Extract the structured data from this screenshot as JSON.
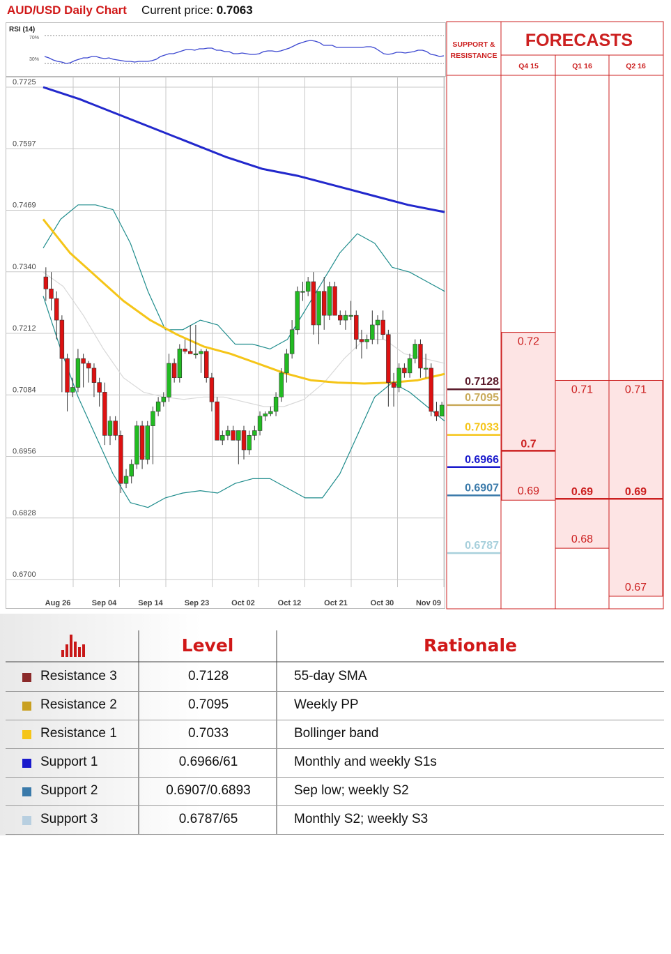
{
  "header": {
    "title": "AUD/USD Daily Chart",
    "price_label": "Current price: ",
    "price_value": "0.7063"
  },
  "rsi": {
    "label": "RSI (14)",
    "upper_label": "70%",
    "lower_label": "30%",
    "upper": 70,
    "lower": 30,
    "values": [
      40,
      38,
      35,
      33,
      32,
      30,
      31,
      34,
      36,
      38,
      38,
      40,
      40,
      38,
      37,
      38,
      36,
      35,
      34,
      33,
      33,
      32,
      33,
      33,
      33,
      34,
      36,
      40,
      42,
      44,
      44,
      46,
      48,
      50,
      50,
      49,
      51,
      51,
      52,
      52,
      49,
      49,
      47,
      47,
      44,
      44,
      45,
      44,
      43,
      43,
      44,
      47,
      48,
      48,
      47,
      48,
      50,
      52,
      55,
      58,
      60,
      62,
      63,
      62,
      60,
      56,
      56,
      56,
      53,
      53,
      53,
      53,
      53,
      53,
      53,
      54,
      54,
      52,
      48,
      44,
      43,
      44,
      46,
      46,
      45,
      46,
      47,
      49,
      49,
      47,
      43,
      42,
      40,
      41
    ]
  },
  "chart_data": {
    "type": "candlestick",
    "x_tick_labels": [
      "Aug 26",
      "Sep 04",
      "Sep 14",
      "Sep 23",
      "Oct 02",
      "Oct 12",
      "Oct 21",
      "Oct 30",
      "Nov 09"
    ],
    "y_tick_labels": [
      "0.7725",
      "0.7597",
      "0.7469",
      "0.7340",
      "0.7212",
      "0.7084",
      "0.6956",
      "0.6828",
      "0.6700"
    ],
    "ylim": [
      0.67,
      0.7725
    ],
    "grid": true,
    "candles": [
      [
        0.733,
        0.735,
        0.728,
        0.7305
      ],
      [
        0.7305,
        0.734,
        0.726,
        0.7285
      ],
      [
        0.7285,
        0.73,
        0.72,
        0.724
      ],
      [
        0.724,
        0.725,
        0.709,
        0.716
      ],
      [
        0.716,
        0.717,
        0.705,
        0.709
      ],
      [
        0.709,
        0.712,
        0.708,
        0.71
      ],
      [
        0.71,
        0.718,
        0.709,
        0.716
      ],
      [
        0.716,
        0.717,
        0.71,
        0.715
      ],
      [
        0.715,
        0.7155,
        0.711,
        0.714
      ],
      [
        0.714,
        0.715,
        0.708,
        0.711
      ],
      [
        0.711,
        0.712,
        0.706,
        0.709
      ],
      [
        0.709,
        0.711,
        0.698,
        0.7
      ],
      [
        0.7,
        0.704,
        0.698,
        0.703
      ],
      [
        0.703,
        0.704,
        0.699,
        0.7
      ],
      [
        0.7,
        0.701,
        0.688,
        0.69
      ],
      [
        0.69,
        0.693,
        0.689,
        0.6915
      ],
      [
        0.6915,
        0.695,
        0.69,
        0.694
      ],
      [
        0.694,
        0.703,
        0.693,
        0.702
      ],
      [
        0.702,
        0.703,
        0.693,
        0.695
      ],
      [
        0.695,
        0.703,
        0.694,
        0.702
      ],
      [
        0.702,
        0.706,
        0.694,
        0.705
      ],
      [
        0.705,
        0.708,
        0.704,
        0.707
      ],
      [
        0.707,
        0.709,
        0.706,
        0.708
      ],
      [
        0.708,
        0.717,
        0.707,
        0.715
      ],
      [
        0.715,
        0.716,
        0.711,
        0.712
      ],
      [
        0.712,
        0.719,
        0.711,
        0.718
      ],
      [
        0.718,
        0.72,
        0.717,
        0.7175
      ],
      [
        0.7175,
        0.723,
        0.717,
        0.717
      ],
      [
        0.717,
        0.723,
        0.716,
        0.717
      ],
      [
        0.717,
        0.718,
        0.713,
        0.7175
      ],
      [
        0.7175,
        0.718,
        0.711,
        0.712
      ],
      [
        0.712,
        0.713,
        0.705,
        0.707
      ],
      [
        0.707,
        0.708,
        0.699,
        0.699
      ],
      [
        0.699,
        0.701,
        0.698,
        0.7
      ],
      [
        0.7,
        0.702,
        0.699,
        0.701
      ],
      [
        0.701,
        0.702,
        0.699,
        0.699
      ],
      [
        0.699,
        0.701,
        0.694,
        0.701
      ],
      [
        0.701,
        0.702,
        0.695,
        0.697
      ],
      [
        0.697,
        0.701,
        0.696,
        0.7
      ],
      [
        0.7,
        0.702,
        0.699,
        0.701
      ],
      [
        0.701,
        0.705,
        0.7,
        0.704
      ],
      [
        0.704,
        0.705,
        0.703,
        0.7045
      ],
      [
        0.7045,
        0.706,
        0.704,
        0.705
      ],
      [
        0.705,
        0.709,
        0.704,
        0.708
      ],
      [
        0.708,
        0.714,
        0.707,
        0.713
      ],
      [
        0.713,
        0.718,
        0.711,
        0.717
      ],
      [
        0.717,
        0.724,
        0.716,
        0.722
      ],
      [
        0.722,
        0.731,
        0.721,
        0.73
      ],
      [
        0.73,
        0.732,
        0.728,
        0.73
      ],
      [
        0.73,
        0.733,
        0.729,
        0.732
      ],
      [
        0.732,
        0.734,
        0.721,
        0.723
      ],
      [
        0.723,
        0.73,
        0.719,
        0.73
      ],
      [
        0.73,
        0.733,
        0.722,
        0.725
      ],
      [
        0.725,
        0.732,
        0.724,
        0.731
      ],
      [
        0.731,
        0.732,
        0.725,
        0.725
      ],
      [
        0.725,
        0.726,
        0.723,
        0.724
      ],
      [
        0.724,
        0.726,
        0.722,
        0.725
      ],
      [
        0.725,
        0.728,
        0.724,
        0.725
      ],
      [
        0.725,
        0.726,
        0.718,
        0.72
      ],
      [
        0.72,
        0.722,
        0.716,
        0.7195
      ],
      [
        0.7195,
        0.721,
        0.718,
        0.72
      ],
      [
        0.72,
        0.726,
        0.719,
        0.723
      ],
      [
        0.723,
        0.725,
        0.719,
        0.724
      ],
      [
        0.724,
        0.726,
        0.72,
        0.721
      ],
      [
        0.721,
        0.722,
        0.706,
        0.711
      ],
      [
        0.711,
        0.713,
        0.706,
        0.71
      ],
      [
        0.71,
        0.715,
        0.709,
        0.714
      ],
      [
        0.714,
        0.715,
        0.712,
        0.713
      ],
      [
        0.713,
        0.717,
        0.712,
        0.716
      ],
      [
        0.716,
        0.72,
        0.715,
        0.719
      ],
      [
        0.719,
        0.72,
        0.712,
        0.714
      ],
      [
        0.714,
        0.717,
        0.712,
        0.714
      ],
      [
        0.714,
        0.715,
        0.704,
        0.705
      ],
      [
        0.705,
        0.707,
        0.703,
        0.704
      ],
      [
        0.704,
        0.707,
        0.704,
        0.7063
      ]
    ],
    "series": [
      {
        "name": "200-day SMA",
        "color": "#2228cc",
        "points": [
          0.7725,
          0.77,
          0.767,
          0.764,
          0.761,
          0.758,
          0.7555,
          0.754,
          0.752,
          0.75,
          0.748,
          0.7465
        ]
      },
      {
        "name": "55-day SMA",
        "color": "#f5c518",
        "points": [
          0.745,
          0.738,
          0.733,
          0.728,
          0.724,
          0.721,
          0.7185,
          0.717,
          0.715,
          0.713,
          0.7115,
          0.711,
          0.7108,
          0.711,
          0.7115,
          0.7128
        ]
      },
      {
        "name": "Bollinger upper",
        "color": "#1e8c8c",
        "points": [
          0.739,
          0.745,
          0.748,
          0.748,
          0.747,
          0.74,
          0.73,
          0.722,
          0.722,
          0.724,
          0.723,
          0.719,
          0.719,
          0.718,
          0.72,
          0.726,
          0.732,
          0.738,
          0.742,
          0.74,
          0.735,
          0.734,
          0.732,
          0.73
        ]
      },
      {
        "name": "Bollinger lower",
        "color": "#1e8c8c",
        "points": [
          0.729,
          0.718,
          0.708,
          0.7,
          0.692,
          0.686,
          0.685,
          0.687,
          0.688,
          0.6885,
          0.688,
          0.69,
          0.691,
          0.691,
          0.689,
          0.687,
          0.687,
          0.692,
          0.7,
          0.708,
          0.711,
          0.709,
          0.706,
          0.703
        ]
      },
      {
        "name": "Bollinger middle",
        "color": "#d8d8d8",
        "points": [
          0.734,
          0.731,
          0.725,
          0.718,
          0.712,
          0.709,
          0.708,
          0.7075,
          0.708,
          0.708,
          0.707,
          0.706,
          0.706,
          0.7075,
          0.711,
          0.716,
          0.72,
          0.72,
          0.717,
          0.716,
          0.715
        ]
      }
    ]
  },
  "support_resistance": {
    "header": "SUPPORT & RESISTANCE",
    "levels": [
      {
        "label": "0.7128",
        "value": 0.7128,
        "color": "#5a1a2a"
      },
      {
        "label": "0.7095",
        "value": 0.7095,
        "color": "#c9aa5a"
      },
      {
        "label": "0.7033",
        "value": 0.7033,
        "color": "#f5c518"
      },
      {
        "label": "0.6966",
        "value": 0.6966,
        "color": "#1a1acc"
      },
      {
        "label": "0.6907",
        "value": 0.6907,
        "color": "#3a7aaa"
      },
      {
        "label": "0.6787",
        "value": 0.6787,
        "color": "#a8d0dc"
      }
    ]
  },
  "forecasts": {
    "title": "FORECASTS",
    "columns": [
      {
        "label": "Q4 15",
        "high": "0.72",
        "high_v": 0.72,
        "mid": "0.7",
        "mid_v": 0.7,
        "low": "0.69",
        "low_v": 0.69
      },
      {
        "label": "Q1 16",
        "high": "0.71",
        "high_v": 0.71,
        "mid": "0.69",
        "mid_v": 0.69,
        "low": "0.68",
        "low_v": 0.68
      },
      {
        "label": "Q2 16",
        "high": "0.71",
        "high_v": 0.71,
        "mid": "0.69",
        "mid_v": 0.69,
        "low": "0.67",
        "low_v": 0.67
      }
    ]
  },
  "table": {
    "head_level": "Level",
    "head_rationale": "Rationale",
    "rows": [
      {
        "name": "Resistance 3",
        "level": "0.7128",
        "rationale": "55-day SMA",
        "color": "#8b2a2a"
      },
      {
        "name": "Resistance 2",
        "level": "0.7095",
        "rationale": "Weekly PP",
        "color": "#c9a020"
      },
      {
        "name": "Resistance 1",
        "level": "0.7033",
        "rationale": "Bollinger band",
        "color": "#f5c518"
      },
      {
        "name": "Support 1",
        "level": "0.6966/61",
        "rationale": "Monthly and weekly S1s",
        "color": "#1a1acc"
      },
      {
        "name": "Support 2",
        "level": "0.6907/0.6893",
        "rationale": "Sep low; weekly S2",
        "color": "#3a7aaa"
      },
      {
        "name": "Support 3",
        "level": "0.6787/65",
        "rationale": "Monthly S2; weekly S3",
        "color": "#b8cfe0"
      }
    ]
  }
}
